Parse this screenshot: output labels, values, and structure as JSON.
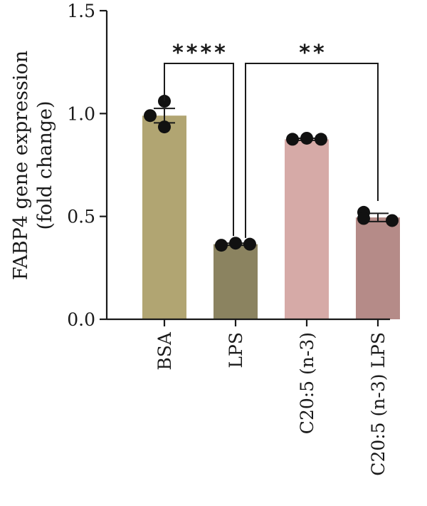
{
  "chart_data": {
    "type": "bar",
    "title": "",
    "ylabel": [
      "FABP4 gene expression",
      "(fold change)"
    ],
    "xlabel": "",
    "ylim": [
      0,
      1.5
    ],
    "yticks": [
      0.0,
      0.5,
      1.0,
      1.5
    ],
    "ytick_labels": [
      "0.0",
      "0.5",
      "1.0",
      "1.5"
    ],
    "categories": [
      "BSA",
      "LPS",
      "C20:5 (n-3)",
      "C20:5 (n-3) LPS"
    ],
    "values": [
      0.99,
      0.365,
      0.875,
      0.495
    ],
    "errors": [
      0.035,
      0.005,
      0.005,
      0.02
    ],
    "points": [
      [
        1.06,
        0.99,
        0.935
      ],
      [
        0.36,
        0.37,
        0.365
      ],
      [
        0.875,
        0.88,
        0.875
      ],
      [
        0.52,
        0.48,
        0.49
      ]
    ],
    "colors": [
      "#b1a572",
      "#8b8360",
      "#d6aaa7",
      "#b58b88"
    ],
    "significance": [
      {
        "from": 0,
        "to": 1,
        "label": "****"
      },
      {
        "from": 1,
        "to": 3,
        "label": "**"
      }
    ]
  }
}
